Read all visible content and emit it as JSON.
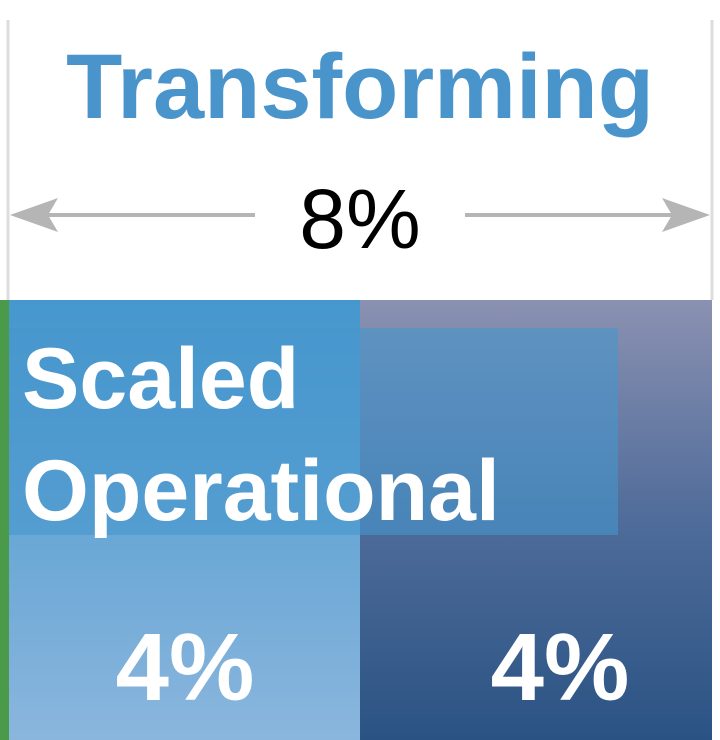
{
  "header": {
    "title": "Transforming",
    "span_label": "8%"
  },
  "segments": [
    {
      "label_lines": [
        "Scaled",
        "Operational"
      ],
      "value_label": "4%"
    },
    {
      "value_label": "4%"
    }
  ]
}
